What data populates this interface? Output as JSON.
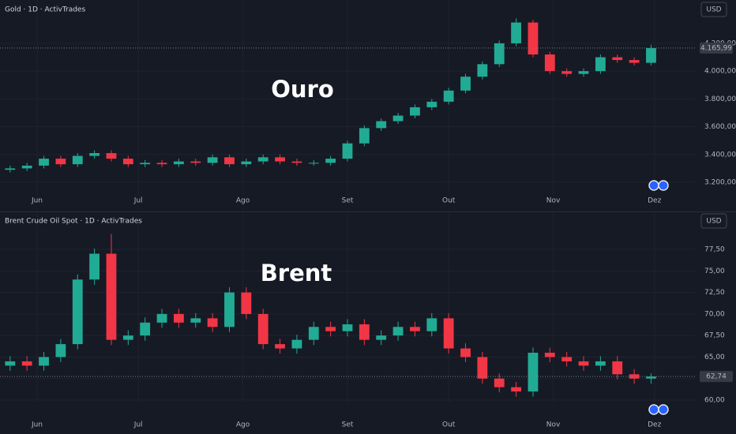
{
  "chart_data": [
    {
      "type": "candlestick",
      "title": "Gold · 1D · ActivTrades",
      "currency": "USD",
      "annotation": "Ouro",
      "up_color": "#22ab94",
      "down_color": "#f23645",
      "grid": true,
      "x": [
        144,
        149,
        154,
        159,
        164,
        169,
        174,
        179,
        184,
        189,
        194,
        199,
        204,
        209,
        214,
        219,
        224,
        229,
        234,
        239,
        244,
        249,
        254,
        259,
        264,
        269,
        274,
        279,
        284,
        289,
        294,
        299,
        304,
        309,
        314,
        319,
        324,
        329,
        334
      ],
      "open": [
        3290,
        3300,
        3320,
        3370,
        3330,
        3390,
        3410,
        3370,
        3330,
        3340,
        3330,
        3350,
        3340,
        3380,
        3330,
        3350,
        3380,
        3350,
        3340,
        3340,
        3370,
        3480,
        3590,
        3640,
        3680,
        3740,
        3780,
        3860,
        3960,
        4050,
        4200,
        4350,
        4120,
        4000,
        3980,
        4000,
        4100,
        4080,
        4060
      ],
      "high": [
        3320,
        3340,
        3390,
        3390,
        3410,
        3430,
        3430,
        3390,
        3360,
        3360,
        3370,
        3370,
        3400,
        3400,
        3370,
        3400,
        3400,
        3370,
        3360,
        3390,
        3500,
        3610,
        3660,
        3700,
        3760,
        3800,
        3880,
        3980,
        4070,
        4220,
        4380,
        4370,
        4140,
        4020,
        4020,
        4120,
        4120,
        4100,
        4190
      ],
      "low": [
        3270,
        3280,
        3300,
        3310,
        3310,
        3370,
        3350,
        3310,
        3310,
        3310,
        3310,
        3320,
        3320,
        3310,
        3310,
        3330,
        3330,
        3320,
        3320,
        3320,
        3350,
        3460,
        3570,
        3620,
        3660,
        3720,
        3760,
        3840,
        3940,
        4030,
        4180,
        4100,
        3980,
        3960,
        3960,
        3980,
        4060,
        4040,
        4040
      ],
      "close": [
        3300,
        3320,
        3370,
        3330,
        3390,
        3410,
        3370,
        3330,
        3340,
        3330,
        3350,
        3340,
        3380,
        3330,
        3350,
        3380,
        3350,
        3340,
        3340,
        3370,
        3480,
        3590,
        3640,
        3680,
        3740,
        3780,
        3860,
        3960,
        4050,
        4200,
        4350,
        4120,
        4000,
        3980,
        4000,
        4100,
        4080,
        4060,
        4165.99
      ],
      "last_price": 4165.99,
      "last_price_label": "4.165,99",
      "xlim": [
        141,
        347
      ],
      "xticks": [
        {
          "value": 152,
          "label": "Jun"
        },
        {
          "value": 182,
          "label": "Jul"
        },
        {
          "value": 213,
          "label": "Ago"
        },
        {
          "value": 244,
          "label": "Set"
        },
        {
          "value": 274,
          "label": "Out"
        },
        {
          "value": 305,
          "label": "Nov"
        },
        {
          "value": 335,
          "label": "Dez"
        }
      ],
      "ylim": [
        3007,
        4512
      ],
      "yticks": [
        {
          "value": 3200,
          "label": "3.200,00"
        },
        {
          "value": 3400,
          "label": "3.400,00"
        },
        {
          "value": 3600,
          "label": "3.600,00"
        },
        {
          "value": 3800,
          "label": "3.800,00"
        },
        {
          "value": 4000,
          "label": "4.000,00"
        },
        {
          "value": 4200,
          "label": "4.200,00"
        }
      ]
    },
    {
      "type": "candlestick",
      "title": "Brent Crude Oil Spot · 1D · ActivTrades",
      "currency": "USD",
      "annotation": "Brent",
      "up_color": "#22ab94",
      "down_color": "#f23645",
      "grid": true,
      "x": [
        144,
        149,
        154,
        159,
        164,
        169,
        174,
        179,
        184,
        189,
        194,
        199,
        204,
        209,
        214,
        219,
        224,
        229,
        234,
        239,
        244,
        249,
        254,
        259,
        264,
        269,
        274,
        279,
        284,
        289,
        294,
        299,
        304,
        309,
        314,
        319,
        324,
        329,
        334
      ],
      "open": [
        64,
        64.5,
        64,
        65,
        66.5,
        74,
        77,
        67,
        67.5,
        69,
        70,
        69,
        69.5,
        68.5,
        72.5,
        70,
        66.5,
        66,
        67,
        68.5,
        68,
        68.8,
        67,
        67.5,
        68.5,
        68,
        69.5,
        66,
        65,
        62.5,
        61.5,
        61,
        65.5,
        65,
        64.5,
        64,
        64.5,
        63,
        62.5
      ],
      "high": [
        65.1,
        65.1,
        65.6,
        67.1,
        74.6,
        77.6,
        79.3,
        68.1,
        69.6,
        70.6,
        70.6,
        70.1,
        70.1,
        73.1,
        73.1,
        70.6,
        67.1,
        67.6,
        69.1,
        69.1,
        69.4,
        69.4,
        68.1,
        69.1,
        69.1,
        70.1,
        70.1,
        66.6,
        65.6,
        63.1,
        62.1,
        66.1,
        66.1,
        65.6,
        65.1,
        65.1,
        65.1,
        63.6,
        63.1
      ],
      "low": [
        63.4,
        63.4,
        63.4,
        64.4,
        65.9,
        73.4,
        66.4,
        66.4,
        66.9,
        68.4,
        68.4,
        68.4,
        67.9,
        67.9,
        69.4,
        65.9,
        65.4,
        65.4,
        66.4,
        67.4,
        67.4,
        66.4,
        66.4,
        66.9,
        67.4,
        67.4,
        65.4,
        64.4,
        61.9,
        60.9,
        60.4,
        60.4,
        64.4,
        63.9,
        63.4,
        63.4,
        62.4,
        61.9,
        61.9
      ],
      "close": [
        64.5,
        64,
        65,
        66.5,
        74,
        77,
        67,
        67.5,
        69,
        70,
        69,
        69.5,
        68.5,
        72.5,
        70,
        66.5,
        66,
        67,
        68.5,
        68,
        68.8,
        67,
        67.5,
        68.5,
        68,
        69.5,
        66,
        65,
        62.5,
        61.5,
        61,
        65.5,
        65,
        64.5,
        64,
        64.5,
        63,
        62.5,
        62.74
      ],
      "last_price": 62.74,
      "last_price_label": "62,74",
      "xlim": [
        141,
        347
      ],
      "xticks": [
        {
          "value": 152,
          "label": "Jun"
        },
        {
          "value": 182,
          "label": "Jul"
        },
        {
          "value": 213,
          "label": "Ago"
        },
        {
          "value": 244,
          "label": "Set"
        },
        {
          "value": 274,
          "label": "Out"
        },
        {
          "value": 305,
          "label": "Nov"
        },
        {
          "value": 335,
          "label": "Dez"
        }
      ],
      "ylim": [
        58.08,
        81.72
      ],
      "yticks": [
        {
          "value": 60,
          "label": "60,00"
        },
        {
          "value": 62.5,
          "label": "62,50"
        },
        {
          "value": 65,
          "label": "65,00"
        },
        {
          "value": 67.5,
          "label": "67,50"
        },
        {
          "value": 70,
          "label": "70,00"
        },
        {
          "value": 72.5,
          "label": "72,50"
        },
        {
          "value": 75,
          "label": "75,00"
        },
        {
          "value": 77.5,
          "label": "77,50"
        }
      ]
    }
  ]
}
